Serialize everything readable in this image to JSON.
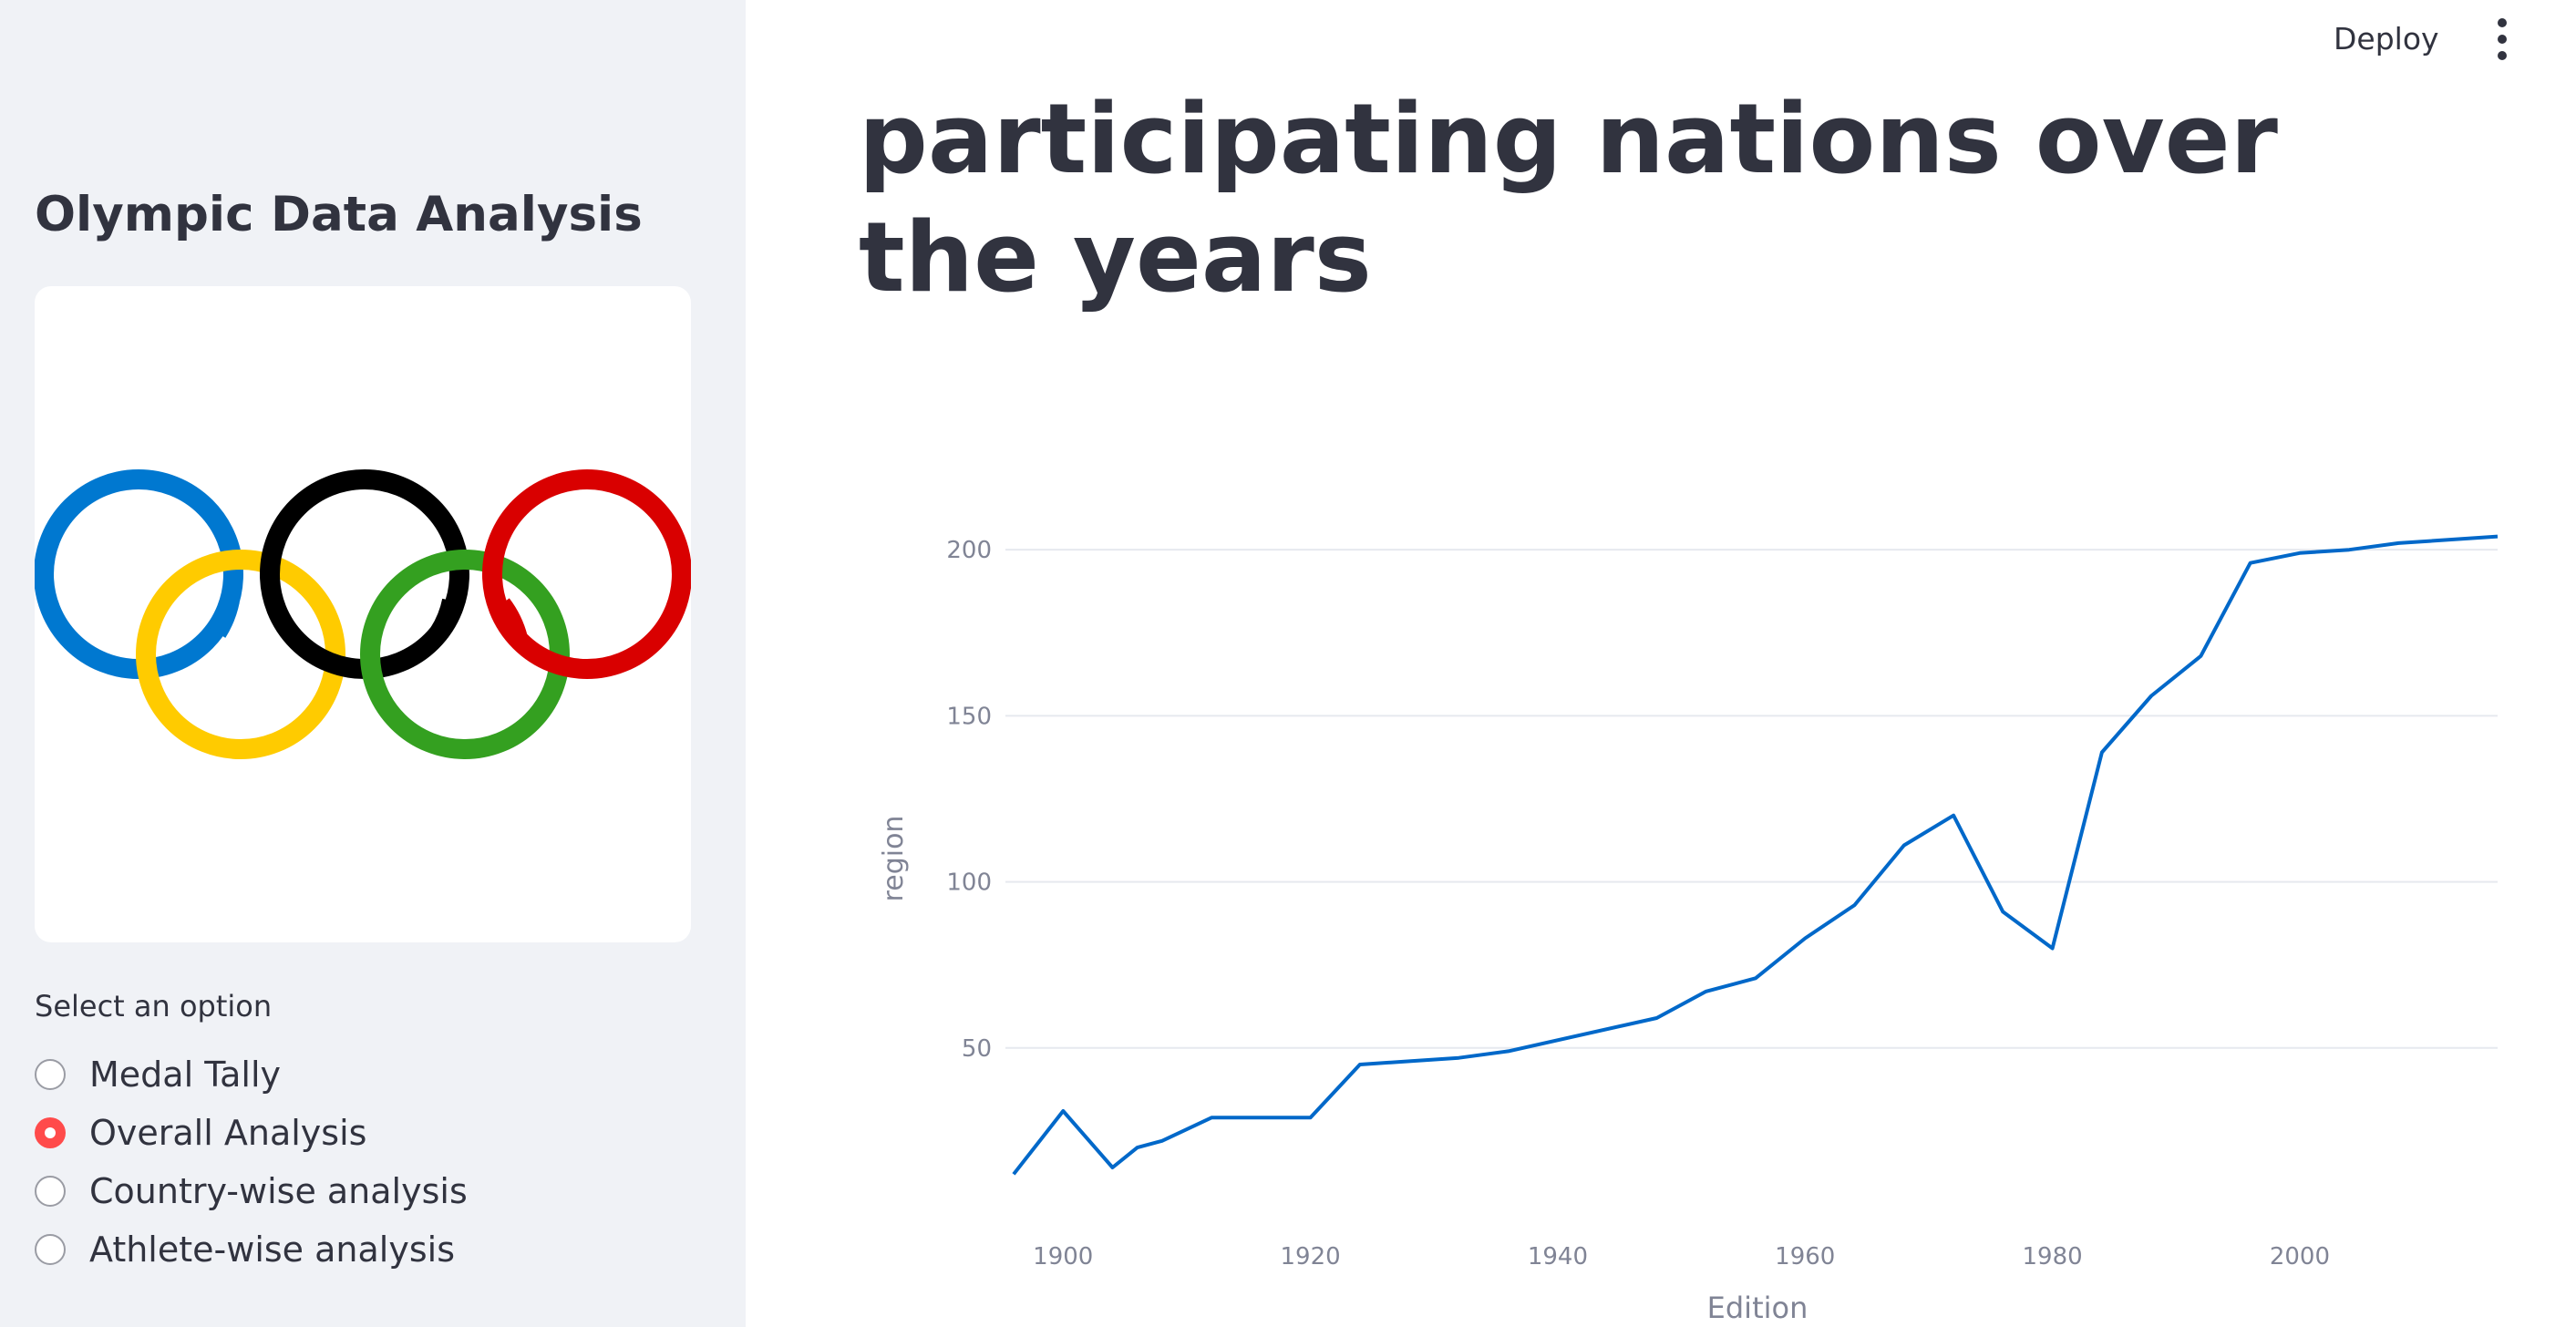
{
  "sidebar": {
    "title": "Olympic Data Analysis",
    "logo_alt": "Olympic rings",
    "select_label": "Select an option",
    "options": [
      {
        "label": "Medal Tally",
        "selected": false
      },
      {
        "label": "Overall Analysis",
        "selected": true
      },
      {
        "label": "Country-wise analysis",
        "selected": false
      },
      {
        "label": "Athlete-wise analysis",
        "selected": false
      }
    ]
  },
  "header": {
    "deploy_label": "Deploy",
    "menu_icon": "kebab-menu-icon"
  },
  "main": {
    "title": "participating nations over the years"
  },
  "colors": {
    "accent": "#ff4b4b",
    "line": "#0068c9",
    "sidebar_bg": "#f0f2f6",
    "text": "#31333f",
    "rings": [
      "#0078d0",
      "#ffcb00",
      "#000000",
      "#34a020",
      "#d90000"
    ]
  },
  "chart_data": {
    "type": "line",
    "xlabel": "Edition",
    "ylabel": "region",
    "xlim": [
      1896,
      2016
    ],
    "ylim": [
      0,
      208
    ],
    "xticks": [
      1900,
      1920,
      1940,
      1960,
      1980,
      2000
    ],
    "yticks": [
      50,
      100,
      150,
      200
    ],
    "grid": true,
    "series": [
      {
        "x": [
          1896,
          1900,
          1904,
          1906,
          1908,
          1912,
          1920,
          1924,
          1928,
          1932,
          1936,
          1948,
          1952,
          1956,
          1960,
          1964,
          1968,
          1972,
          1976,
          1980,
          1984,
          1988,
          1992,
          1996,
          2000,
          2004,
          2008,
          2016
        ],
        "values": [
          12,
          31,
          14,
          20,
          22,
          29,
          29,
          45,
          46,
          47,
          49,
          59,
          67,
          71,
          83,
          93,
          111,
          120,
          91,
          80,
          139,
          156,
          168,
          196,
          199,
          200,
          202,
          204
        ]
      }
    ]
  }
}
